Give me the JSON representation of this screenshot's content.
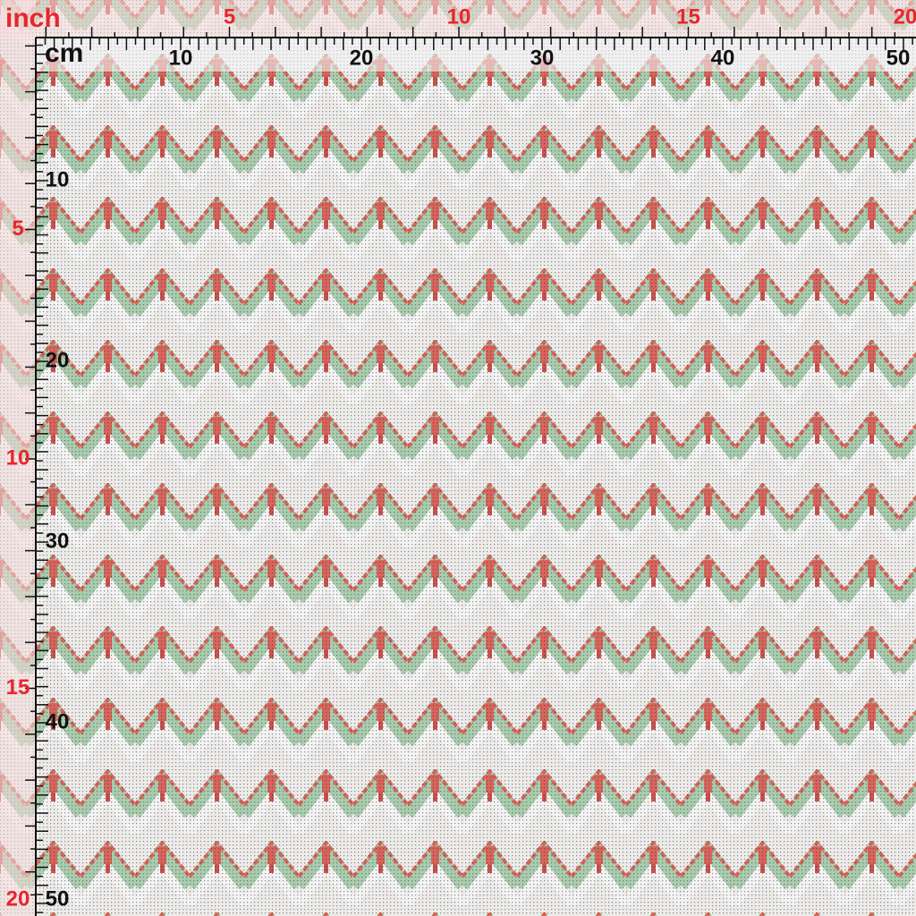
{
  "ruler": {
    "inch_unit": "inch",
    "cm_unit": "cm",
    "top_inch_labels": [
      5,
      10,
      15,
      20
    ],
    "top_cm_labels": [
      10,
      20,
      30,
      40,
      50
    ],
    "left_inch_labels": [
      5,
      10,
      15,
      20
    ],
    "left_cm_labels": [
      10,
      20,
      30,
      40,
      50
    ]
  }
}
